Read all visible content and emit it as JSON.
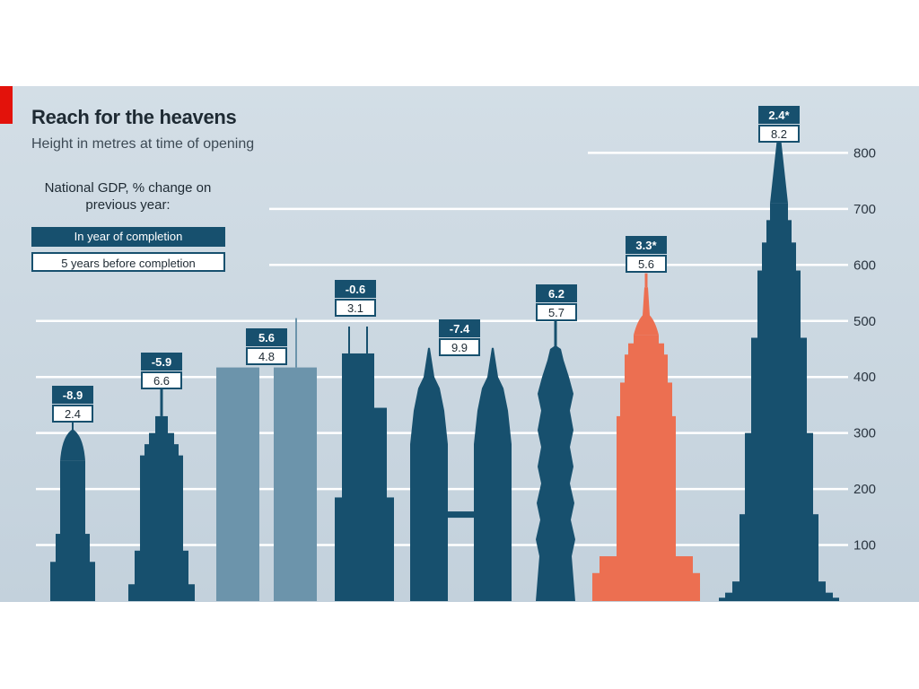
{
  "colors": {
    "building": "#17506e",
    "building_light": "#6c94ab",
    "highlight": "#ec6f51",
    "gridline": "#ffffff",
    "panel": "#c9d6df",
    "accent_red": "#e3120b"
  },
  "chart_data": {
    "type": "bar",
    "title": "Reach for the heavens",
    "subtitle": "Height in metres at time of opening",
    "legend_heading": "National GDP, % change on previous year:",
    "legend": {
      "year_of_completion": "In year of completion",
      "five_years_before": "5 years before completion"
    },
    "ylim": [
      0,
      850
    ],
    "y_ticks": [
      {
        "value": 100,
        "label": "100"
      },
      {
        "value": 200,
        "label": "200"
      },
      {
        "value": 300,
        "label": "300"
      },
      {
        "value": 400,
        "label": "400"
      },
      {
        "value": 500,
        "label": "500"
      },
      {
        "value": 600,
        "label": "600"
      },
      {
        "value": 700,
        "label": "700"
      },
      {
        "value": 800,
        "label": "800"
      }
    ],
    "series": [
      {
        "values": [
          319,
          381,
          417,
          417,
          442,
          452,
          452,
          508,
          601,
          828
        ]
      }
    ],
    "buildings": [
      {
        "height": 319,
        "gdp_year": "-8.9",
        "gdp_5yr": "2.4",
        "shape": "chrysler",
        "color": "building"
      },
      {
        "height": 381,
        "gdp_year": "-5.9",
        "gdp_5yr": "6.6",
        "shape": "empire",
        "color": "building"
      },
      {
        "height": 417,
        "gdp_year": "5.6",
        "gdp_5yr": "4.8",
        "shape": "twin-box",
        "color": "building_light"
      },
      {
        "height": 442,
        "gdp_year": "-0.6",
        "gdp_5yr": "3.1",
        "shape": "sears",
        "color": "building"
      },
      {
        "height": 452,
        "gdp_year": "-7.4",
        "gdp_5yr": "9.9",
        "shape": "petronas",
        "color": "building"
      },
      {
        "height": 508,
        "gdp_year": "6.2",
        "gdp_5yr": "5.7",
        "shape": "taipei",
        "color": "building"
      },
      {
        "height": 601,
        "gdp_year": "3.3*",
        "gdp_5yr": "5.6",
        "shape": "clocktower",
        "color": "highlight"
      },
      {
        "height": 828,
        "gdp_year": "2.4*",
        "gdp_5yr": "8.2",
        "shape": "burj",
        "color": "building"
      }
    ]
  }
}
